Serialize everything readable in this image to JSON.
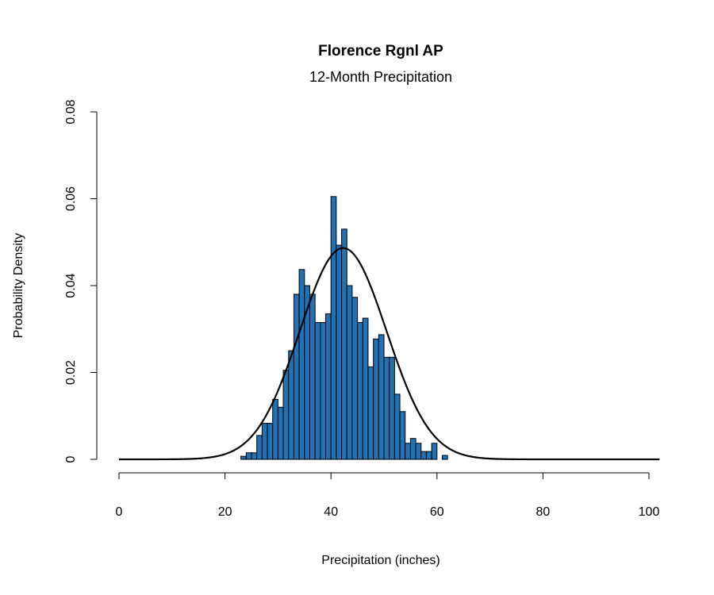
{
  "chart_data": {
    "type": "bar",
    "title": "Florence Rgnl AP",
    "subtitle": "12-Month Precipitation",
    "xlabel": "Precipitation (inches)",
    "ylabel": "Probability Density",
    "xlim": [
      0,
      102
    ],
    "ylim": [
      0,
      0.08
    ],
    "x_ticks": [
      0,
      20,
      40,
      60,
      80,
      100
    ],
    "y_ticks": [
      0,
      0.02,
      0.04,
      0.06,
      0.08
    ],
    "x_tick_labels": [
      "0",
      "20",
      "40",
      "60",
      "80",
      "100"
    ],
    "y_tick_labels": [
      "0",
      "0.02",
      "0.04",
      "0.06",
      "0.08"
    ],
    "bar_color": "#2171b5",
    "bin_width": 1,
    "bins": [
      {
        "x": 23,
        "density": 0.0007
      },
      {
        "x": 24,
        "density": 0.0015
      },
      {
        "x": 25,
        "density": 0.0015
      },
      {
        "x": 26,
        "density": 0.0055
      },
      {
        "x": 27,
        "density": 0.0083
      },
      {
        "x": 28,
        "density": 0.0083
      },
      {
        "x": 29,
        "density": 0.0138
      },
      {
        "x": 30,
        "density": 0.012
      },
      {
        "x": 31,
        "density": 0.0205
      },
      {
        "x": 32,
        "density": 0.025
      },
      {
        "x": 33,
        "density": 0.038
      },
      {
        "x": 34,
        "density": 0.0437
      },
      {
        "x": 35,
        "density": 0.04
      },
      {
        "x": 36,
        "density": 0.038
      },
      {
        "x": 37,
        "density": 0.0315
      },
      {
        "x": 38,
        "density": 0.0315
      },
      {
        "x": 39,
        "density": 0.0335
      },
      {
        "x": 40,
        "density": 0.0605
      },
      {
        "x": 41,
        "density": 0.0493
      },
      {
        "x": 42,
        "density": 0.053
      },
      {
        "x": 43,
        "density": 0.04
      },
      {
        "x": 44,
        "density": 0.0373
      },
      {
        "x": 45,
        "density": 0.0315
      },
      {
        "x": 46,
        "density": 0.0325
      },
      {
        "x": 47,
        "density": 0.0213
      },
      {
        "x": 48,
        "density": 0.0277
      },
      {
        "x": 49,
        "density": 0.0287
      },
      {
        "x": 50,
        "density": 0.0235
      },
      {
        "x": 51,
        "density": 0.0235
      },
      {
        "x": 52,
        "density": 0.015
      },
      {
        "x": 53,
        "density": 0.011
      },
      {
        "x": 54,
        "density": 0.0037
      },
      {
        "x": 55,
        "density": 0.0048
      },
      {
        "x": 56,
        "density": 0.0037
      },
      {
        "x": 57,
        "density": 0.0018
      },
      {
        "x": 58,
        "density": 0.0018
      },
      {
        "x": 59,
        "density": 0.0037
      },
      {
        "x": 60,
        "density": 0.0
      },
      {
        "x": 61,
        "density": 0.0009
      }
    ],
    "series": [
      {
        "type": "line",
        "distribution": "normal",
        "mean": 42.3,
        "sd": 8.2,
        "x_range": [
          0,
          102
        ]
      }
    ]
  }
}
